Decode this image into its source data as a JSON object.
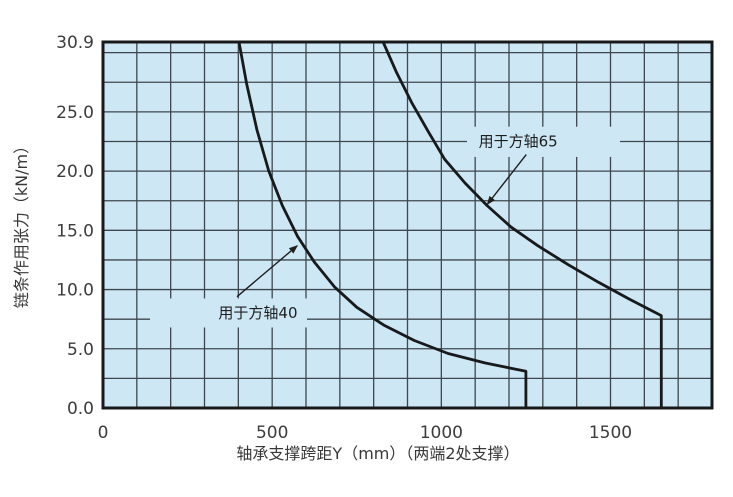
{
  "chart_data": {
    "type": "line",
    "title": "",
    "xlabel": "轴承支撑跨距Y（mm）（两端2处支撑）",
    "ylabel": "链条作用张力（kN/m）",
    "xlim": [
      0,
      1800
    ],
    "ylim": [
      0,
      30.9
    ],
    "x_grid_step": 100,
    "y_grid_step": 2.5,
    "grid": true,
    "legend_position": "none",
    "x_ticks": [
      {
        "value": 0,
        "label": "0"
      },
      {
        "value": 500,
        "label": "500"
      },
      {
        "value": 1000,
        "label": "1000"
      },
      {
        "value": 1500,
        "label": "1500"
      }
    ],
    "y_ticks": [
      {
        "value": 30.9,
        "label": "30.9"
      },
      {
        "value": 25,
        "label": "25.0"
      },
      {
        "value": 20,
        "label": "20.0"
      },
      {
        "value": 15,
        "label": "15.0"
      },
      {
        "value": 10,
        "label": "10.0"
      },
      {
        "value": 5,
        "label": "5.0"
      },
      {
        "value": 0,
        "label": "0.0"
      }
    ],
    "colors": {
      "plot_bg": "#cde7f4",
      "grid": "#3e474e",
      "curve": "#17191b",
      "border": "#17191b",
      "text": "#3c3c3c"
    },
    "series": [
      {
        "name": "用于方轴40",
        "points": [
          [
            402,
            30.9
          ],
          [
            425,
            27.3
          ],
          [
            455,
            23.5
          ],
          [
            490,
            20.0
          ],
          [
            530,
            17.1
          ],
          [
            575,
            14.5
          ],
          [
            625,
            12.3
          ],
          [
            685,
            10.2
          ],
          [
            750,
            8.5
          ],
          [
            830,
            7.0
          ],
          [
            920,
            5.7
          ],
          [
            1020,
            4.6
          ],
          [
            1130,
            3.8
          ],
          [
            1250,
            3.1
          ],
          [
            1250,
            0
          ]
        ]
      },
      {
        "name": "用于方轴65",
        "points": [
          [
            828,
            30.9
          ],
          [
            868,
            28.3
          ],
          [
            912,
            25.8
          ],
          [
            960,
            23.4
          ],
          [
            1010,
            21.0
          ],
          [
            1070,
            19.0
          ],
          [
            1135,
            17.1
          ],
          [
            1205,
            15.3
          ],
          [
            1285,
            13.7
          ],
          [
            1375,
            12.1
          ],
          [
            1465,
            10.6
          ],
          [
            1555,
            9.2
          ],
          [
            1650,
            7.8
          ],
          [
            1650,
            0
          ]
        ]
      }
    ],
    "annotations": [
      {
        "text": "用于方轴40",
        "text_x": 458,
        "text_y": 8.0,
        "box": {
          "x1": 139,
          "y1": 6.8,
          "x2": 603,
          "y2": 9.25
        },
        "arrow": {
          "from_x": 396,
          "from_y": 9.4,
          "to_x": 574,
          "to_y": 13.7
        }
      },
      {
        "text": "用于方轴65",
        "text_x": 1227,
        "text_y": 22.5,
        "box": {
          "x1": 1076,
          "y1": 21.2,
          "x2": 1528,
          "y2": 23.75
        },
        "arrow": {
          "from_x": 1251,
          "from_y": 21.4,
          "to_x": 1136,
          "to_y": 17.2
        }
      }
    ]
  }
}
